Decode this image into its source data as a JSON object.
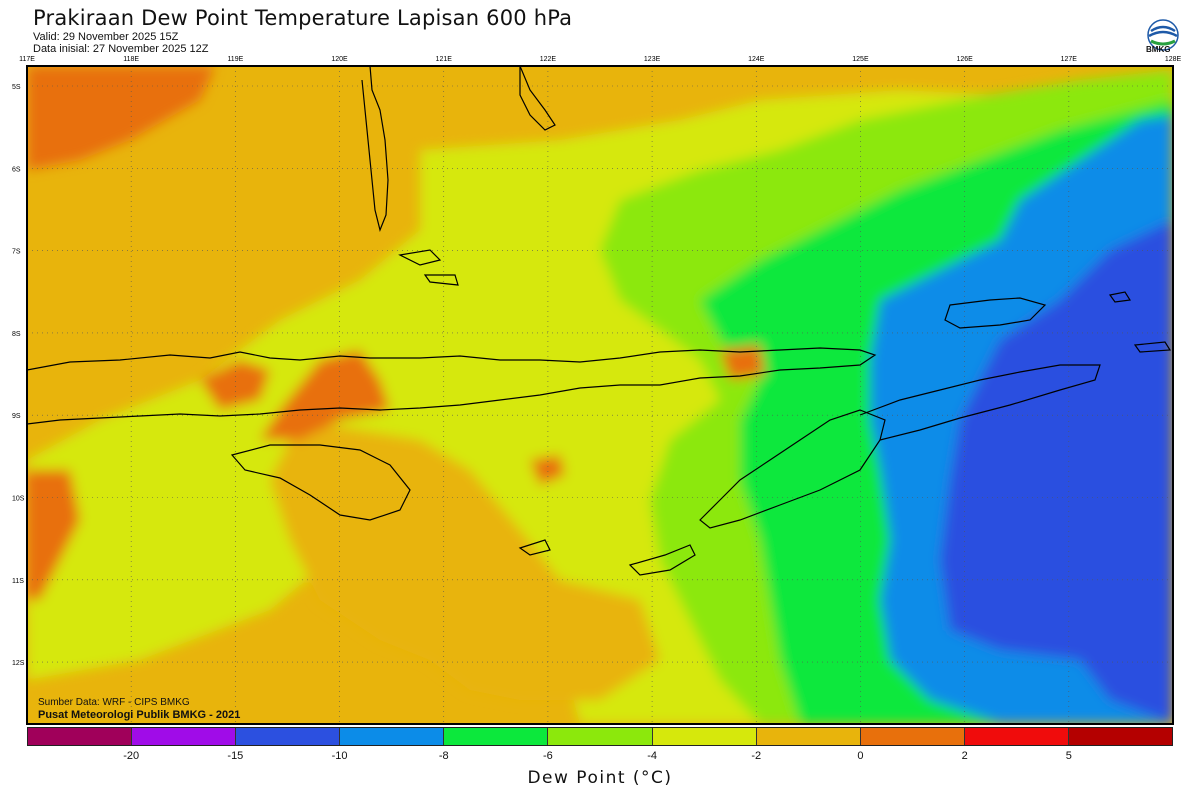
{
  "header": {
    "title": "Prakiraan Dew Point Temperature Lapisan 600 hPa",
    "valid": "Valid: 29 November 2025 15Z",
    "initial": "Data inisial: 27 November 2025 12Z"
  },
  "logo": {
    "text": "BMKG",
    "icon": "bmkg-logo"
  },
  "map": {
    "lon_ticks": [
      "117E",
      "118E",
      "119E",
      "120E",
      "121E",
      "122E",
      "123E",
      "124E",
      "125E",
      "126E",
      "127E",
      "128E"
    ],
    "lat_ticks": [
      "5S",
      "6S",
      "7S",
      "8S",
      "9S",
      "10S",
      "11S",
      "12S"
    ],
    "colors": {
      "dark_orange": "#e8700c",
      "orange": "#e8b40c",
      "yellow": "#d6e80c",
      "light_green": "#8ce80c",
      "green": "#0ce83c",
      "light_blue": "#0c8ce8",
      "blue": "#2c50e0",
      "border": "#000000"
    }
  },
  "source": {
    "line1": "Sumber Data: WRF - CIPS BMKG",
    "line2": "Pusat Meteorologi Publik BMKG - 2021"
  },
  "colorbar": {
    "colors": [
      "#a0005a",
      "#a00ce8",
      "#2c50e0",
      "#0c8ce8",
      "#0ce83c",
      "#8ce80c",
      "#d6e80c",
      "#e8b40c",
      "#e8700c",
      "#f00c0c",
      "#b40000"
    ],
    "labels": [
      "-20",
      "-15",
      "-10",
      "-8",
      "-6",
      "-4",
      "-2",
      "0",
      "2",
      "5"
    ],
    "unit": "Dew Point (°C)"
  }
}
